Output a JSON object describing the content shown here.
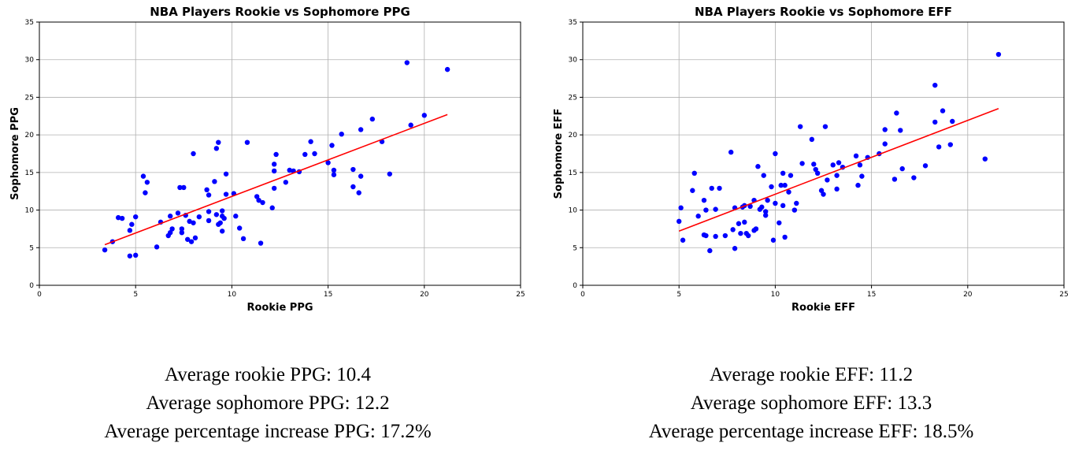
{
  "chart_data": [
    {
      "type": "scatter",
      "title": "NBA Players Rookie vs Sophomore PPG",
      "xlabel": "Rookie PPG",
      "ylabel": "Sophomore PPG",
      "xlim": [
        0,
        25
      ],
      "ylim": [
        0,
        35
      ],
      "xticks": [
        0,
        5,
        10,
        15,
        20,
        25
      ],
      "yticks": [
        0,
        5,
        10,
        15,
        20,
        25,
        30,
        35
      ],
      "grid": true,
      "point_color": "#0000ff",
      "line_color": "#ff0000",
      "trend_line": {
        "x": [
          3.4,
          21.2
        ],
        "y": [
          5.4,
          22.7
        ]
      },
      "points": [
        [
          3.4,
          4.7
        ],
        [
          3.8,
          5.8
        ],
        [
          4.1,
          9.0
        ],
        [
          4.3,
          8.9
        ],
        [
          4.7,
          3.9
        ],
        [
          4.7,
          7.3
        ],
        [
          4.8,
          8.1
        ],
        [
          5.0,
          9.1
        ],
        [
          5.0,
          4.0
        ],
        [
          5.4,
          14.5
        ],
        [
          5.5,
          12.3
        ],
        [
          5.6,
          13.7
        ],
        [
          6.1,
          5.1
        ],
        [
          6.3,
          8.4
        ],
        [
          6.7,
          6.6
        ],
        [
          6.8,
          7.0
        ],
        [
          6.8,
          9.2
        ],
        [
          6.9,
          7.5
        ],
        [
          7.2,
          9.6
        ],
        [
          7.3,
          13.0
        ],
        [
          7.4,
          7.5
        ],
        [
          7.4,
          7.0
        ],
        [
          7.5,
          13.0
        ],
        [
          7.6,
          9.3
        ],
        [
          7.7,
          6.1
        ],
        [
          7.8,
          8.5
        ],
        [
          7.9,
          5.8
        ],
        [
          8.0,
          8.3
        ],
        [
          8.0,
          17.5
        ],
        [
          8.1,
          6.3
        ],
        [
          8.3,
          9.1
        ],
        [
          8.7,
          12.7
        ],
        [
          8.8,
          8.6
        ],
        [
          8.8,
          9.8
        ],
        [
          8.8,
          12.0
        ],
        [
          9.1,
          13.8
        ],
        [
          9.2,
          9.4
        ],
        [
          9.2,
          18.2
        ],
        [
          9.3,
          8.1
        ],
        [
          9.3,
          19.0
        ],
        [
          9.4,
          8.3
        ],
        [
          9.5,
          9.2
        ],
        [
          9.5,
          9.9
        ],
        [
          9.5,
          7.2
        ],
        [
          9.6,
          8.9
        ],
        [
          9.7,
          14.8
        ],
        [
          9.7,
          12.1
        ],
        [
          10.1,
          12.2
        ],
        [
          10.2,
          9.2
        ],
        [
          10.4,
          7.6
        ],
        [
          10.6,
          6.2
        ],
        [
          10.8,
          19.0
        ],
        [
          11.3,
          11.8
        ],
        [
          11.4,
          11.3
        ],
        [
          11.5,
          5.6
        ],
        [
          11.6,
          11.0
        ],
        [
          12.1,
          10.3
        ],
        [
          12.2,
          12.9
        ],
        [
          12.2,
          15.2
        ],
        [
          12.2,
          16.1
        ],
        [
          12.3,
          17.4
        ],
        [
          12.8,
          13.7
        ],
        [
          13.0,
          15.3
        ],
        [
          13.2,
          15.2
        ],
        [
          13.5,
          15.1
        ],
        [
          13.8,
          17.4
        ],
        [
          14.1,
          19.1
        ],
        [
          14.3,
          17.5
        ],
        [
          15.0,
          16.3
        ],
        [
          15.2,
          18.6
        ],
        [
          15.3,
          15.3
        ],
        [
          15.3,
          14.7
        ],
        [
          15.7,
          20.1
        ],
        [
          16.3,
          15.4
        ],
        [
          16.3,
          13.1
        ],
        [
          16.6,
          12.3
        ],
        [
          16.7,
          20.7
        ],
        [
          16.7,
          14.5
        ],
        [
          17.3,
          22.1
        ],
        [
          17.8,
          19.1
        ],
        [
          18.2,
          14.8
        ],
        [
          19.1,
          29.6
        ],
        [
          19.3,
          21.3
        ],
        [
          20.0,
          22.6
        ],
        [
          21.2,
          28.7
        ]
      ]
    },
    {
      "type": "scatter",
      "title": "NBA Players Rookie vs Sophomore EFF",
      "xlabel": "Rookie EFF",
      "ylabel": "Sophomore EFF",
      "xlim": [
        0,
        25
      ],
      "ylim": [
        0,
        35
      ],
      "xticks": [
        0,
        5,
        10,
        15,
        20,
        25
      ],
      "yticks": [
        0,
        5,
        10,
        15,
        20,
        25,
        30,
        35
      ],
      "grid": true,
      "point_color": "#0000ff",
      "line_color": "#ff0000",
      "trend_line": {
        "x": [
          5.0,
          21.6
        ],
        "y": [
          7.2,
          23.5
        ]
      },
      "points": [
        [
          5.0,
          8.5
        ],
        [
          5.1,
          10.3
        ],
        [
          5.2,
          6.0
        ],
        [
          5.7,
          12.6
        ],
        [
          5.8,
          14.9
        ],
        [
          6.0,
          9.2
        ],
        [
          6.3,
          6.7
        ],
        [
          6.3,
          11.3
        ],
        [
          6.4,
          10.0
        ],
        [
          6.4,
          6.6
        ],
        [
          6.6,
          4.6
        ],
        [
          6.7,
          12.9
        ],
        [
          6.9,
          10.1
        ],
        [
          6.9,
          6.5
        ],
        [
          7.1,
          12.9
        ],
        [
          7.4,
          6.6
        ],
        [
          7.7,
          17.7
        ],
        [
          7.8,
          7.4
        ],
        [
          7.9,
          4.9
        ],
        [
          7.9,
          10.3
        ],
        [
          8.1,
          8.2
        ],
        [
          8.2,
          6.9
        ],
        [
          8.3,
          10.4
        ],
        [
          8.4,
          8.4
        ],
        [
          8.4,
          10.6
        ],
        [
          8.5,
          6.9
        ],
        [
          8.6,
          6.6
        ],
        [
          8.7,
          10.5
        ],
        [
          8.9,
          11.3
        ],
        [
          8.9,
          7.3
        ],
        [
          9.0,
          7.5
        ],
        [
          9.1,
          15.8
        ],
        [
          9.2,
          10.1
        ],
        [
          9.3,
          10.4
        ],
        [
          9.4,
          14.6
        ],
        [
          9.5,
          9.8
        ],
        [
          9.5,
          9.3
        ],
        [
          9.6,
          11.3
        ],
        [
          9.8,
          13.1
        ],
        [
          9.9,
          6.0
        ],
        [
          10.0,
          10.9
        ],
        [
          10.0,
          17.5
        ],
        [
          10.2,
          8.3
        ],
        [
          10.3,
          13.3
        ],
        [
          10.4,
          10.6
        ],
        [
          10.4,
          14.9
        ],
        [
          10.5,
          13.3
        ],
        [
          10.5,
          6.4
        ],
        [
          10.7,
          12.4
        ],
        [
          10.8,
          14.6
        ],
        [
          11.0,
          10.0
        ],
        [
          11.1,
          10.9
        ],
        [
          11.3,
          21.1
        ],
        [
          11.4,
          16.2
        ],
        [
          11.9,
          19.4
        ],
        [
          12.0,
          16.1
        ],
        [
          12.1,
          15.4
        ],
        [
          12.2,
          14.9
        ],
        [
          12.4,
          12.6
        ],
        [
          12.5,
          12.1
        ],
        [
          12.6,
          21.1
        ],
        [
          12.7,
          14.0
        ],
        [
          13.0,
          16.0
        ],
        [
          13.2,
          14.6
        ],
        [
          13.2,
          12.8
        ],
        [
          13.3,
          16.3
        ],
        [
          13.5,
          15.7
        ],
        [
          14.2,
          17.2
        ],
        [
          14.3,
          13.3
        ],
        [
          14.4,
          16.0
        ],
        [
          14.5,
          14.5
        ],
        [
          14.8,
          17.0
        ],
        [
          15.4,
          17.5
        ],
        [
          15.7,
          18.8
        ],
        [
          15.7,
          20.7
        ],
        [
          16.2,
          14.1
        ],
        [
          16.3,
          22.9
        ],
        [
          16.5,
          20.6
        ],
        [
          16.6,
          15.5
        ],
        [
          17.2,
          14.3
        ],
        [
          17.8,
          15.9
        ],
        [
          18.3,
          26.6
        ],
        [
          18.3,
          21.7
        ],
        [
          18.5,
          18.4
        ],
        [
          18.7,
          23.2
        ],
        [
          19.1,
          18.7
        ],
        [
          19.2,
          21.8
        ],
        [
          20.9,
          16.8
        ],
        [
          21.6,
          30.7
        ]
      ]
    }
  ],
  "stats": {
    "ppg": {
      "avg_rookie": "Average rookie PPG: 10.4",
      "avg_sophomore": "Average sophomore PPG: 12.2",
      "avg_increase": "Average percentage increase PPG: 17.2%"
    },
    "eff": {
      "avg_rookie": "Average rookie EFF: 11.2",
      "avg_sophomore": "Average sophomore EFF: 13.3",
      "avg_increase": "Average percentage increase EFF: 18.5%"
    }
  }
}
